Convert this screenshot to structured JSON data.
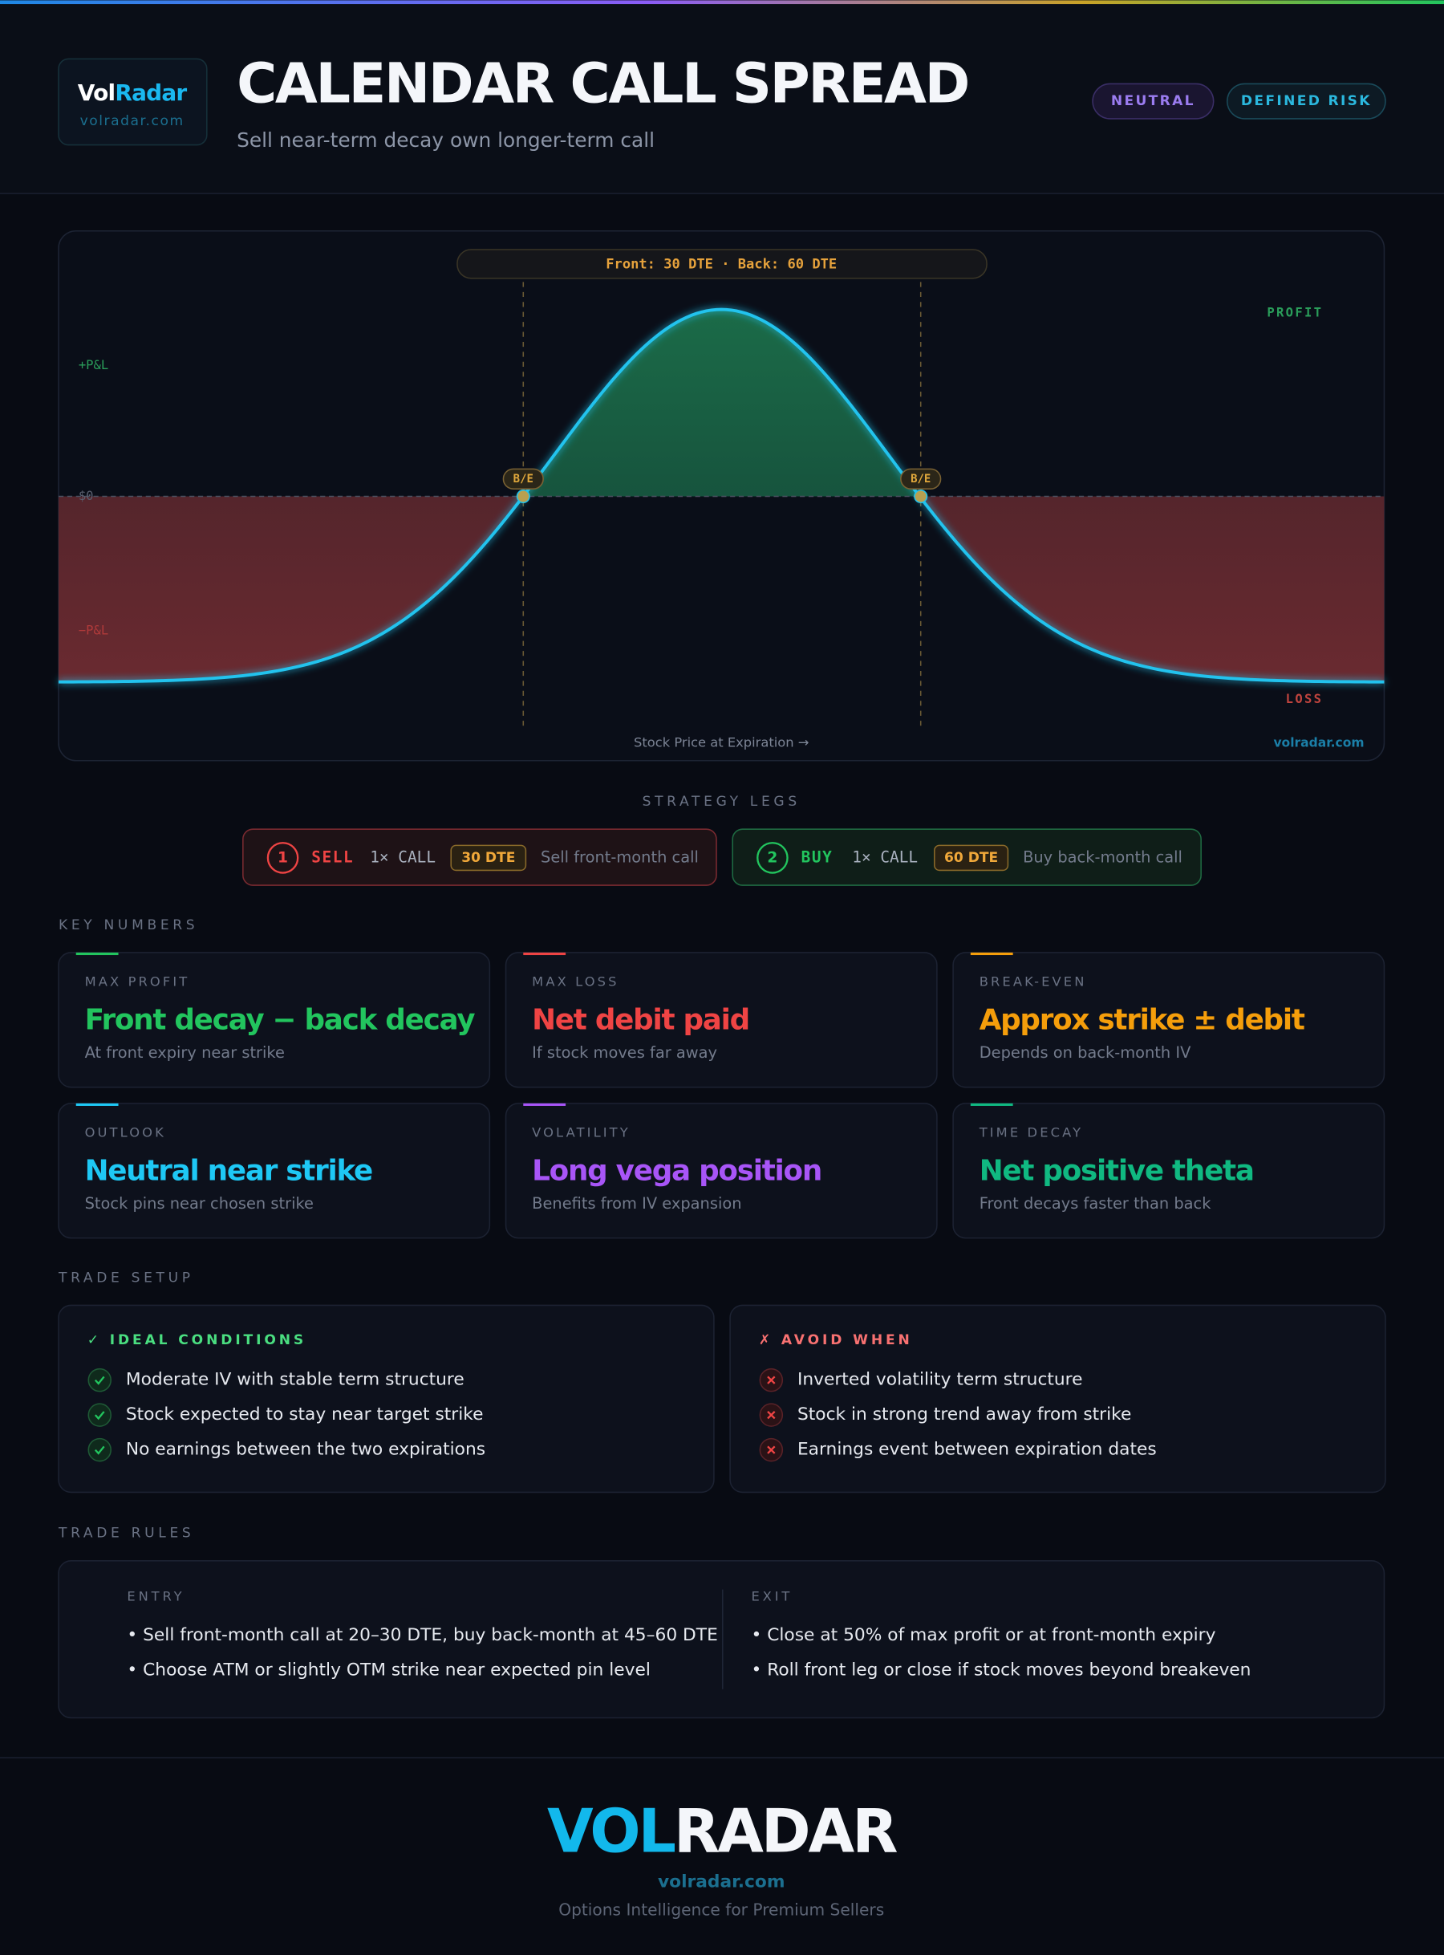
{
  "header": {
    "logo": {
      "prefix": "Vol",
      "suffix": "Radar",
      "url": "volradar.com"
    },
    "title": "CALENDAR CALL SPREAD",
    "subtitle": "Sell near-term decay own longer-term call",
    "tags": [
      "NEUTRAL",
      "DEFINED RISK"
    ]
  },
  "payoff": {
    "expiry_label": "Front: 30 DTE · Back: 60 DTE",
    "profit_label": "PROFIT",
    "loss_label": "LOSS",
    "plus_label": "+P&L",
    "zero_label": "$0",
    "minus_label": "−P&L",
    "breakeven_labels": [
      "B/E",
      "B/E"
    ],
    "x_label": "Stock Price at Expiration →",
    "watermark": "volradar.com"
  },
  "legs": {
    "title": "STRATEGY LEGS",
    "items": [
      {
        "number": "1",
        "action": "SELL",
        "contract": "1× CALL",
        "dte": "30 DTE",
        "note": "Sell front-month call"
      },
      {
        "number": "2",
        "action": "BUY",
        "contract": "1× CALL",
        "dte": "60 DTE",
        "note": "Buy back-month call"
      }
    ]
  },
  "key_numbers": {
    "title": "KEY NUMBERS",
    "cards": [
      {
        "label": "MAX PROFIT",
        "value": "Front decay − back decay",
        "note": "At front expiry near strike"
      },
      {
        "label": "MAX LOSS",
        "value": "Net debit paid",
        "note": "If stock moves far away"
      },
      {
        "label": "BREAK-EVEN",
        "value": "Approx strike ± debit",
        "note": "Depends on back-month IV"
      },
      {
        "label": "OUTLOOK",
        "value": "Neutral near strike",
        "note": "Stock pins near chosen strike"
      },
      {
        "label": "VOLATILITY",
        "value": "Long vega position",
        "note": "Benefits from IV expansion"
      },
      {
        "label": "TIME DECAY",
        "value": "Net positive theta",
        "note": "Front decays faster than back"
      }
    ]
  },
  "trade_setup": {
    "title": "TRADE SETUP",
    "ideal": {
      "title": "✓ IDEAL CONDITIONS",
      "items": [
        "Moderate IV with stable term structure",
        "Stock expected to stay near target strike",
        "No earnings between the two expirations"
      ]
    },
    "avoid": {
      "title": "✗ AVOID WHEN",
      "items": [
        "Inverted volatility term structure",
        "Stock in strong trend away from strike",
        "Earnings event between expiration dates"
      ]
    }
  },
  "trade_rules": {
    "title": "TRADE RULES",
    "entry": {
      "title": "ENTRY",
      "items": [
        "• Sell front-month call at 20–30 DTE, buy back-month at 45–60 DTE",
        "• Choose ATM or slightly OTM strike near expected pin level"
      ]
    },
    "exit": {
      "title": "EXIT",
      "items": [
        "• Close at 50% of max profit or at front-month expiry",
        "• Roll front leg or close if stock moves beyond breakeven"
      ]
    }
  },
  "footer": {
    "brand_prefix": "VOL",
    "brand_suffix": "RADAR",
    "url": "volradar.com",
    "tagline": "Options Intelligence for Premium Sellers"
  }
}
